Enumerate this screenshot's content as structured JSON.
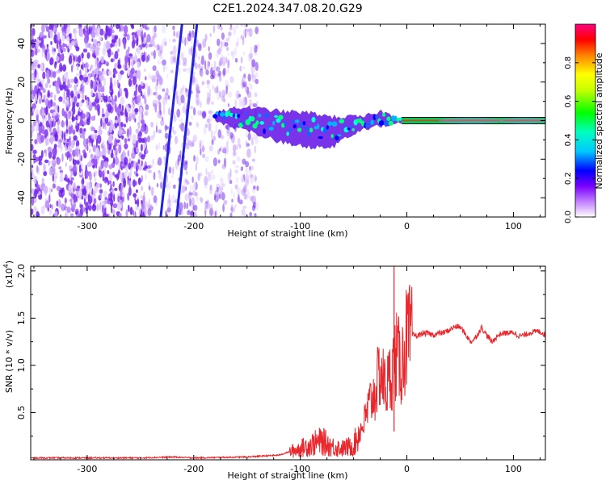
{
  "title": "C2E1.2024.347.08.20.G29",
  "chart_data": [
    {
      "type": "heatmap",
      "title": "C2E1.2024.347.08.20.G29",
      "xlabel": "Height of straight line (km)",
      "ylabel": "Frequency (Hz)",
      "xlim": [
        -353,
        130
      ],
      "ylim": [
        -50,
        50
      ],
      "x_ticks": [
        -300,
        -200,
        -100,
        0,
        100
      ],
      "y_ticks": [
        -40,
        -20,
        0,
        20,
        40
      ],
      "grid": false,
      "colorbar": {
        "label": "Normalized spectral amplitude",
        "range": [
          0.0,
          1.0
        ],
        "ticks": [
          "0.0",
          "0.2",
          "0.4",
          "0.6",
          "0.8"
        ],
        "colors": [
          "#ffffff",
          "#8800ff",
          "#0000ff",
          "#00ffff",
          "#00ff00",
          "#ffff00",
          "#ff0000",
          "#ff0088"
        ]
      },
      "features": {
        "noise_region_x": [
          -353,
          -140
        ],
        "dense_noise_x": [
          -353,
          -245
        ],
        "diagonal_line_1": {
          "x": [
            -231,
            -211
          ],
          "y": [
            -50,
            50
          ],
          "color": "#2222dd"
        },
        "diagonal_line_2": {
          "x": [
            -216,
            -197
          ],
          "y": [
            -50,
            50
          ],
          "color": "#2222dd"
        },
        "signal_band": [
          {
            "x": -180,
            "center": 2,
            "halfwidth": 3
          },
          {
            "x": -150,
            "center": 1,
            "halfwidth": 6
          },
          {
            "x": -120,
            "center": -3,
            "halfwidth": 8
          },
          {
            "x": -90,
            "center": -5,
            "halfwidth": 9
          },
          {
            "x": -70,
            "center": -6,
            "halfwidth": 8
          },
          {
            "x": -55,
            "center": -3,
            "halfwidth": 5
          },
          {
            "x": -40,
            "center": -1,
            "halfwidth": 3
          },
          {
            "x": -25,
            "center": 1,
            "halfwidth": 4
          },
          {
            "x": -10,
            "center": 0,
            "halfwidth": 2
          },
          {
            "x": 0,
            "center": 0,
            "halfwidth": 1.5
          },
          {
            "x": 130,
            "center": 0,
            "halfwidth": 1.5
          }
        ]
      }
    },
    {
      "type": "line",
      "xlabel": "Height of straight line (km)",
      "ylabel": "SNR (10 * v/v)",
      "y_multiplier": "(x10",
      "y_multiplier_exp": "4",
      "xlim": [
        -353,
        130
      ],
      "ylim": [
        0,
        2.05
      ],
      "x_ticks": [
        -300,
        -200,
        -100,
        0,
        100
      ],
      "y_ticks": [
        "0.5",
        "1.0",
        "1.5",
        "2.0"
      ],
      "grid": false,
      "series": [
        {
          "color": "#e8262b",
          "x": [
            -353,
            -300,
            -250,
            -220,
            -200,
            -150,
            -120,
            -100,
            -90,
            -80,
            -70,
            -60,
            -50,
            -40,
            -35,
            -30,
            -25,
            -20,
            -15,
            -10,
            -5,
            0,
            10,
            20,
            30,
            40,
            50,
            60,
            70,
            80,
            90,
            100,
            110,
            120,
            130
          ],
          "y": [
            0.02,
            0.02,
            0.02,
            0.03,
            0.02,
            0.03,
            0.05,
            0.12,
            0.16,
            0.2,
            0.14,
            0.12,
            0.15,
            0.4,
            0.6,
            0.7,
            0.95,
            0.75,
            0.9,
            1.1,
            1.0,
            1.3,
            1.25,
            1.35,
            1.4,
            1.35,
            1.35,
            1.28,
            1.45,
            1.2,
            1.3,
            1.4,
            1.35,
            1.3,
            1.3
          ]
        }
      ],
      "spike": {
        "x": -12,
        "y": 2.05
      }
    }
  ]
}
